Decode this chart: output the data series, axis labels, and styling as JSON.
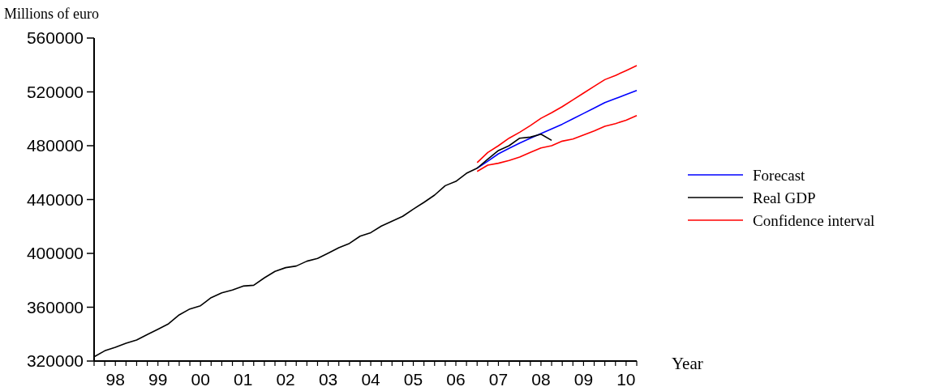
{
  "chart_data": {
    "type": "line",
    "ylabel": "Millions of euro",
    "xlabel": "Year",
    "categories": [
      null,
      null,
      "98",
      null,
      null,
      null,
      "99",
      null,
      null,
      null,
      "00",
      null,
      null,
      null,
      "01",
      null,
      null,
      null,
      "02",
      null,
      null,
      null,
      "03",
      null,
      null,
      null,
      "04",
      null,
      null,
      null,
      "05",
      null,
      null,
      null,
      "06",
      null,
      null,
      null,
      "07",
      null,
      null,
      null,
      "08",
      null,
      null,
      null,
      "09",
      null,
      null,
      null,
      "10",
      null
    ],
    "ylim": [
      320000,
      560000
    ],
    "yticks": [
      320000,
      360000,
      400000,
      440000,
      480000,
      520000,
      560000
    ],
    "grid": false,
    "legend": "right",
    "marker": "none",
    "line_style": "solid",
    "series": [
      {
        "name": "Forecast",
        "color": "#0000ff",
        "values": [
          null,
          null,
          null,
          null,
          null,
          null,
          null,
          null,
          null,
          null,
          null,
          null,
          null,
          null,
          null,
          null,
          null,
          null,
          null,
          null,
          null,
          null,
          null,
          null,
          null,
          null,
          null,
          null,
          null,
          null,
          null,
          null,
          null,
          null,
          null,
          null,
          463300,
          468500,
          474000,
          478000,
          482000,
          485500,
          489000,
          492500,
          496000,
          500000,
          504000,
          508000,
          512000,
          515000,
          518000,
          521100
        ]
      },
      {
        "name": "Real GDP",
        "color": "#000000",
        "values": [
          323200,
          327600,
          330200,
          333200,
          335600,
          339700,
          343600,
          347700,
          354300,
          358700,
          361100,
          367100,
          370700,
          372800,
          375700,
          376300,
          381800,
          386600,
          389400,
          390600,
          394200,
          396200,
          400200,
          404200,
          407400,
          412800,
          415400,
          420300,
          423900,
          427500,
          432900,
          437900,
          443300,
          450300,
          453500,
          459500,
          463300,
          470000,
          476400,
          480000,
          485600,
          486400,
          488600,
          484000,
          null,
          null,
          null,
          null,
          null,
          null,
          null,
          null
        ]
      },
      {
        "name": "Confidence interval",
        "color": "#ff0000",
        "values": [
          null,
          null,
          null,
          null,
          null,
          null,
          null,
          null,
          null,
          null,
          null,
          null,
          null,
          null,
          null,
          null,
          null,
          null,
          null,
          null,
          null,
          null,
          null,
          null,
          null,
          null,
          null,
          null,
          null,
          null,
          null,
          null,
          null,
          null,
          null,
          null,
          467400,
          475000,
          480000,
          485600,
          490000,
          495000,
          500400,
          504500,
          509000,
          514100,
          519100,
          524100,
          529100,
          532200,
          535800,
          539600
        ]
      },
      {
        "color": "#ff0000",
        "values": [
          null,
          null,
          null,
          null,
          null,
          null,
          null,
          null,
          null,
          null,
          null,
          null,
          null,
          null,
          null,
          null,
          null,
          null,
          null,
          null,
          null,
          null,
          null,
          null,
          null,
          null,
          null,
          null,
          null,
          null,
          null,
          null,
          null,
          null,
          null,
          null,
          460900,
          465600,
          467000,
          469000,
          471600,
          475000,
          478400,
          480000,
          483400,
          485000,
          488000,
          491000,
          494400,
          496400,
          499000,
          502400
        ]
      }
    ]
  }
}
